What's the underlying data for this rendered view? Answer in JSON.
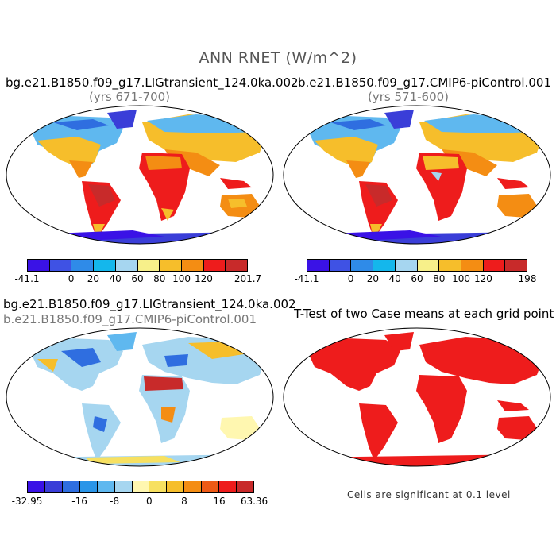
{
  "title": "ANN RNET (W/m^2)",
  "panels": {
    "top_left": {
      "title": "bg.e21.B1850.f09_g17.LIGtransient_124.0ka.002",
      "subtitle": "(yrs 671-700)"
    },
    "top_right": {
      "title": "b.e21.B1850.f09_g17.CMIP6-piControl.001",
      "subtitle": "(yrs 571-600)"
    },
    "bottom_left": {
      "title": "bg.e21.B1850.f09_g17.LIGtransient_124.0ka.002",
      "subtitle": "b.e21.B1850.f09_g17.CMIP6-piControl.001"
    },
    "bottom_right": {
      "title": "T-Test of two Case means at each grid point",
      "note": "Cells are significant at 0.1 level"
    }
  },
  "colorbars": {
    "abs_left": {
      "colors": [
        "#3a12e6",
        "#3f52e4",
        "#2f8be8",
        "#14b7ec",
        "#a6d6f0",
        "#f7f08a",
        "#f6be2b",
        "#f48d13",
        "#ee1c1c",
        "#c82a2a"
      ],
      "labels": [
        "-41.1",
        "0",
        "20",
        "40",
        "60",
        "80",
        "100",
        "120",
        "201.7"
      ]
    },
    "abs_right": {
      "colors": [
        "#3a12e6",
        "#3f52e4",
        "#2f8be8",
        "#14b7ec",
        "#a6d6f0",
        "#f7f08a",
        "#f6be2b",
        "#f48d13",
        "#ee1c1c",
        "#c82a2a"
      ],
      "labels": [
        "-41.1",
        "0",
        "20",
        "40",
        "60",
        "80",
        "100",
        "120",
        "198"
      ]
    },
    "diff": {
      "colors": [
        "#3a12e6",
        "#3a3ed8",
        "#2f6ee0",
        "#2a95e8",
        "#5fb8ef",
        "#a6d6f0",
        "#fff7b0",
        "#f7e060",
        "#f6be2b",
        "#f48d13",
        "#ee5a16",
        "#ee1c1c",
        "#c82a2a"
      ],
      "labels": [
        "-32.95",
        "-16",
        "-8",
        "0",
        "8",
        "16",
        "63.36"
      ]
    }
  }
}
